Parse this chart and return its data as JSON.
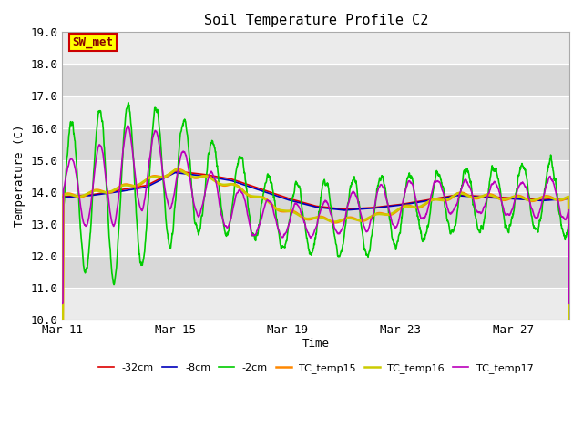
{
  "title": "Soil Temperature Profile C2",
  "xlabel": "Time",
  "ylabel": "Temperature (C)",
  "ylim": [
    10.0,
    19.0
  ],
  "yticks": [
    10.0,
    11.0,
    12.0,
    13.0,
    14.0,
    15.0,
    16.0,
    17.0,
    18.0,
    19.0
  ],
  "bg_color": "#ffffff",
  "plot_bg_light": "#ebebeb",
  "plot_bg_dark": "#d8d8d8",
  "series": [
    {
      "label": "-32cm",
      "color": "#dd0000",
      "lw": 1.2
    },
    {
      "label": "-8cm",
      "color": "#0000bb",
      "lw": 1.2
    },
    {
      "label": "-2cm",
      "color": "#00cc00",
      "lw": 1.2
    },
    {
      "label": "TC_temp15",
      "color": "#ff8800",
      "lw": 1.8
    },
    {
      "label": "TC_temp16",
      "color": "#cccc00",
      "lw": 1.8
    },
    {
      "label": "TC_temp17",
      "color": "#bb00bb",
      "lw": 1.2
    }
  ],
  "annotation_text": "SW_met",
  "annotation_bg": "#ffff00",
  "annotation_border": "#cc0000",
  "annotation_text_color": "#880000",
  "xtick_labels": [
    "Mar 11",
    "Mar 15",
    "Mar 19",
    "Mar 23",
    "Mar 27"
  ],
  "xtick_positions": [
    0,
    4,
    8,
    12,
    16
  ]
}
